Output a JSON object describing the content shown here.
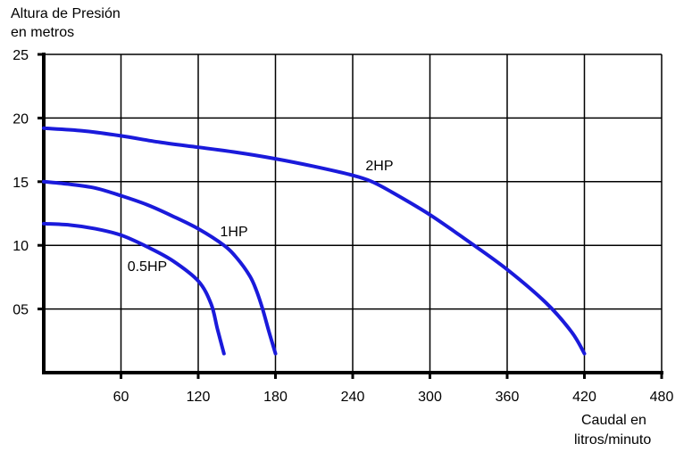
{
  "chart_data": {
    "type": "line",
    "ylabel_lines": [
      "Altura de Presión",
      "en metros"
    ],
    "xlabel_lines": [
      "Caudal en",
      "litros/minuto"
    ],
    "xlim": [
      0,
      480
    ],
    "ylim": [
      0,
      25
    ],
    "x_ticks": [
      60,
      120,
      180,
      240,
      300,
      360,
      420,
      480
    ],
    "x_tick_labels": [
      "60",
      "120",
      "180",
      "240",
      "300",
      "360",
      "420",
      "480"
    ],
    "y_ticks": [
      5,
      10,
      15,
      20,
      25
    ],
    "y_tick_labels": [
      "05",
      "10",
      "15",
      "20",
      "25"
    ],
    "grid": true,
    "line_color": "#1a1adb",
    "series": [
      {
        "name": "0.5HP",
        "x": [
          0,
          20,
          40,
          60,
          80,
          100,
          120,
          130,
          135,
          140
        ],
        "y": [
          11.7,
          11.6,
          11.3,
          10.8,
          9.9,
          8.8,
          7.2,
          5.4,
          3.4,
          1.5
        ]
      },
      {
        "name": "1HP",
        "x": [
          0,
          20,
          40,
          60,
          80,
          100,
          120,
          140,
          150,
          160,
          165,
          170,
          175,
          180
        ],
        "y": [
          15.0,
          14.8,
          14.5,
          13.9,
          13.2,
          12.3,
          11.3,
          10.0,
          9.0,
          7.6,
          6.5,
          5.0,
          3.2,
          1.5
        ]
      },
      {
        "name": "2HP",
        "x": [
          0,
          30,
          60,
          90,
          120,
          150,
          180,
          210,
          240,
          255,
          270,
          300,
          330,
          360,
          390,
          410,
          420
        ],
        "y": [
          19.2,
          19.0,
          18.6,
          18.1,
          17.7,
          17.3,
          16.8,
          16.2,
          15.5,
          15.0,
          14.2,
          12.4,
          10.3,
          8.1,
          5.5,
          3.2,
          1.5
        ]
      }
    ],
    "series_label_positions": [
      {
        "name": "0.5HP",
        "x": 65,
        "y": 8.0
      },
      {
        "name": "1HP",
        "x": 137,
        "y": 10.7
      },
      {
        "name": "2HP",
        "x": 250,
        "y": 15.9
      }
    ]
  }
}
